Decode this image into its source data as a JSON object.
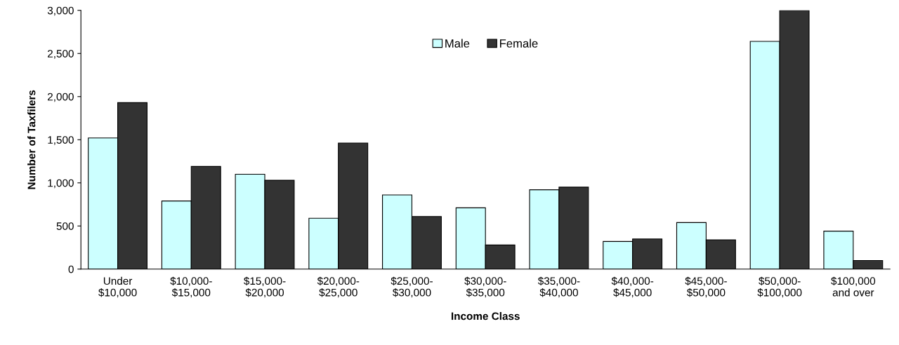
{
  "chart_data": {
    "type": "bar",
    "xlabel": "Income Class",
    "ylabel": "Number of Taxfilers",
    "categories": [
      "Under\n$10,000",
      "$10,000-\n$15,000",
      "$15,000-\n$20,000",
      "$20,000-\n$25,000",
      "$25,000-\n$30,000",
      "$30,000-\n$35,000",
      "$35,000-\n$40,000",
      "$40,000-\n$45,000",
      "$45,000-\n$50,000",
      "$50,000-\n$100,000",
      "$100,000\nand over"
    ],
    "series": [
      {
        "name": "Male",
        "color": "#ccffff",
        "values": [
          1520,
          790,
          1100,
          590,
          860,
          710,
          920,
          320,
          540,
          2640,
          440
        ]
      },
      {
        "name": "Female",
        "color": "#333333",
        "values": [
          1930,
          1190,
          1030,
          1460,
          610,
          280,
          950,
          350,
          340,
          3000,
          100
        ]
      }
    ],
    "ylim": [
      0,
      3000
    ],
    "yticks": [
      0,
      {
        "value": 500,
        "label": "500"
      },
      {
        "value": 1000,
        "label": "1,000"
      },
      {
        "value": 1500,
        "label": "1,500"
      },
      {
        "value": 2000,
        "label": "2,000"
      },
      {
        "value": 2500,
        "label": "2,500"
      },
      {
        "value": 3000,
        "label": "3,000"
      }
    ],
    "grid": false,
    "legend": "top"
  }
}
